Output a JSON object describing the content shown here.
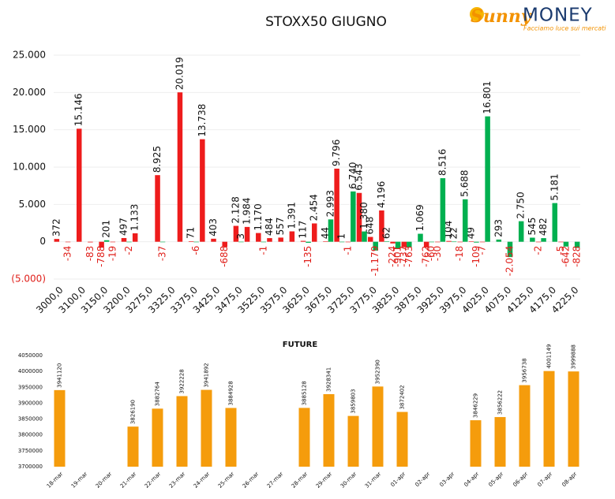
{
  "logo": {
    "brand_a": "Sunny",
    "brand_b": "MONEY",
    "tagline": "Facciamo luce sui mercati"
  },
  "chart_data": [
    {
      "type": "bar",
      "title": "STOXX50 GIUGNO",
      "categories": [
        "3000,0",
        null,
        "3100,0",
        null,
        "3150,0",
        null,
        "3200,0",
        null,
        "3275,0",
        null,
        "3325,0",
        null,
        "3375,0",
        null,
        "3425,0",
        null,
        "3475,0",
        null,
        "3525,0",
        null,
        "3575,0",
        null,
        "3625,0",
        null,
        "3675,0",
        null,
        "3725,0",
        null,
        "3775,0",
        null,
        "3825,0",
        null,
        "3875,0",
        null,
        "3925,0",
        null,
        "3975,0",
        null,
        "4025,0",
        null,
        "4075,0",
        null,
        "4125,0",
        null,
        "4175,0",
        null,
        "4225,0"
      ],
      "series": [
        {
          "color": "#ee1c1c",
          "values": [
            372,
            -34,
            15146,
            -83,
            -788,
            -19,
            497,
            1133,
            null,
            8925,
            null,
            20019,
            71,
            13738,
            403,
            -688,
            2128,
            1984,
            1170,
            484,
            557,
            1391,
            117,
            2454,
            44,
            9796,
            -1,
            6543,
            648,
            4196,
            -224,
            -737,
            null,
            -762,
            -30,
            104,
            -18,
            49,
            -7,
            null,
            null,
            null,
            null,
            -2,
            null,
            -5,
            null
          ],
          "value_labels": [
            "372",
            "-34",
            "15.146",
            "-83",
            "-788",
            "-19",
            "497",
            "1.133",
            null,
            "8.925",
            null,
            "20.019",
            "71",
            "13.738",
            "403",
            "-688",
            "2.128",
            "1.984",
            "1.170",
            "484",
            "557",
            "1.391",
            "117",
            "2.454",
            "44",
            "9.796",
            "-1",
            "6.543",
            "648",
            "4.196",
            "-224",
            "-737",
            null,
            "-762",
            "-30",
            "104",
            "-18",
            "49",
            "-7",
            null,
            null,
            null,
            null,
            "-2",
            null,
            "-5",
            null
          ]
        },
        {
          "color": "#00b050",
          "values": [
            null,
            null,
            null,
            null,
            201,
            null,
            -2,
            null,
            null,
            -37,
            null,
            null,
            -6,
            null,
            null,
            null,
            3,
            null,
            -1,
            null,
            null,
            null,
            -135,
            null,
            2993,
            1,
            6740,
            1380,
            -1179,
            62,
            -901,
            -763,
            1069,
            -60,
            8516,
            22,
            5688,
            -109,
            16801,
            293,
            -2054,
            2750,
            545,
            482,
            5181,
            -642,
            -828
          ],
          "value_labels": [
            null,
            null,
            null,
            null,
            "201",
            null,
            "-2",
            null,
            null,
            "-37",
            null,
            null,
            "-6",
            null,
            null,
            null,
            "3",
            null,
            "-1",
            null,
            null,
            null,
            "-135",
            null,
            "2.993",
            "1",
            "6.740",
            "1.380",
            "-1.179",
            "62",
            "-901",
            "-763",
            "1.069",
            "-60",
            "8.516",
            "22",
            "5.688",
            "-109",
            "16.801",
            "293",
            "-2.054",
            "2.750",
            "545",
            "482",
            "5.181",
            "-642",
            "-828"
          ]
        }
      ],
      "negative_color": "#e0201b",
      "ylim": [
        -5000,
        25000
      ],
      "yticks": [
        {
          "value": -5000,
          "label": "(5.000)"
        },
        0,
        {
          "value": 5000,
          "label": "5.000"
        },
        {
          "value": 10000,
          "label": "10.000"
        },
        {
          "value": 15000,
          "label": "15.000"
        },
        {
          "value": 20000,
          "label": "20.000"
        },
        {
          "value": 25000,
          "label": "25.000"
        }
      ],
      "grid": true
    },
    {
      "type": "bar",
      "title": "FUTURE",
      "categories": [
        "18-mar",
        "19-mar",
        "20-mar",
        "21-mar",
        "22-mar",
        "23-mar",
        "24-mar",
        "25-mar",
        "26-mar",
        "27-mar",
        "28-mar",
        "29-mar",
        "30-mar",
        "31-mar",
        "01-apr",
        "02-apr",
        "03-apr",
        "04-apr",
        "05-apr",
        "06-apr",
        "07-apr",
        "08-apr"
      ],
      "values": [
        3941120,
        null,
        null,
        3826190,
        3882764,
        3922228,
        3941892,
        3884928,
        null,
        null,
        3885128,
        3928341,
        3859803,
        3952390,
        3872402,
        null,
        null,
        3846229,
        3856222,
        3956738,
        4001149,
        3999888
      ],
      "color": "#f59c0c",
      "ylim": [
        3700000,
        4050000
      ],
      "yticks": [
        3700000,
        3750000,
        3800000,
        3850000,
        3900000,
        3950000,
        4000000,
        4050000
      ],
      "grid": false
    }
  ]
}
